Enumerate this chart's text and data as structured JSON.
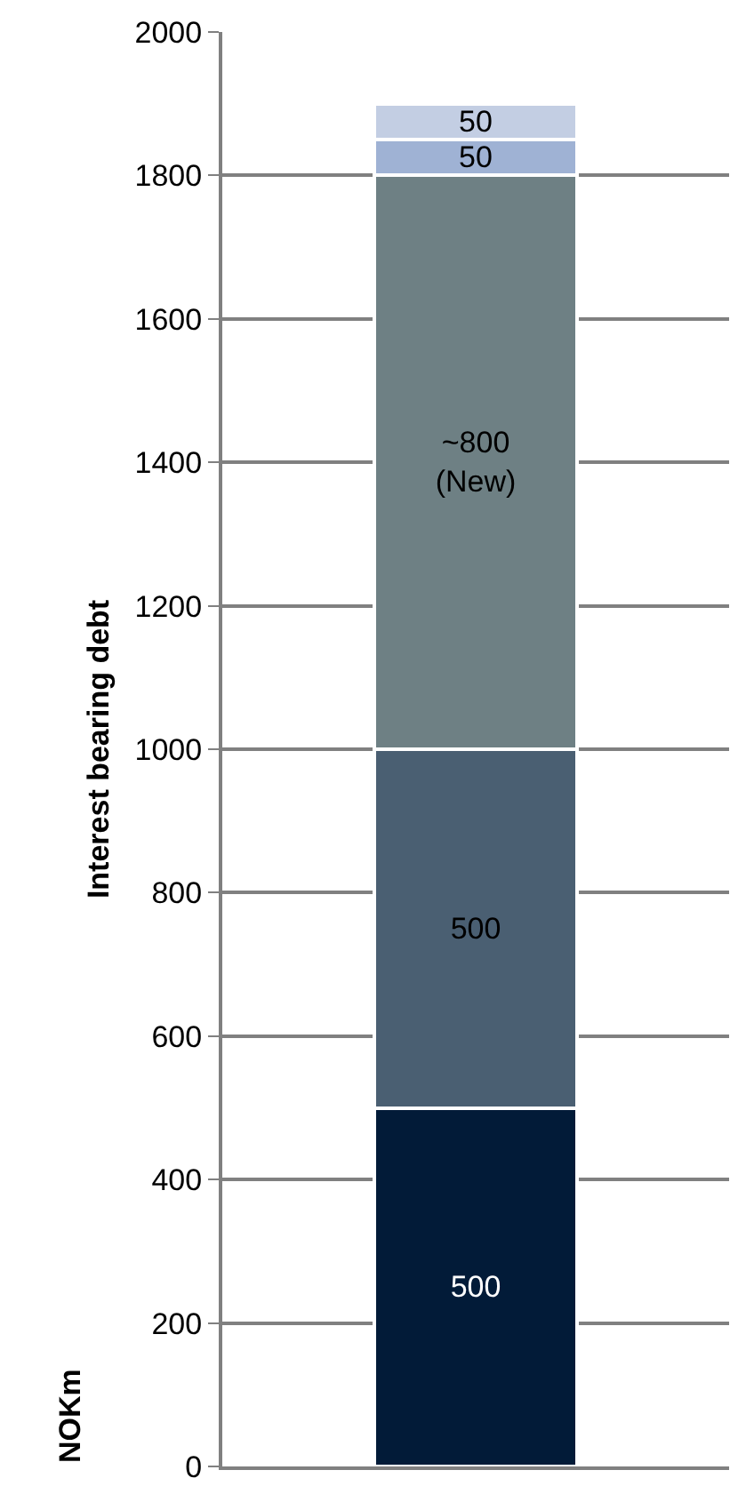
{
  "chart_data": {
    "type": "bar",
    "stacked": true,
    "categories": [
      null
    ],
    "ylabel": "Interest bearing debt",
    "annotations": [
      "NOKm"
    ],
    "series": [
      {
        "color": "#021b38",
        "values": [
          500
        ],
        "value_labels": [
          "500"
        ]
      },
      {
        "color": "#4a5f72",
        "values": [
          500
        ],
        "value_labels": [
          "500"
        ]
      },
      {
        "color": "#6e8084",
        "values": [
          800
        ],
        "value_labels": [
          "~800\n(New)"
        ]
      },
      {
        "color": "#9fb2d4",
        "values": [
          50
        ],
        "value_labels": [
          "50"
        ]
      },
      {
        "color": "#c3cee3",
        "values": [
          50
        ],
        "value_labels": [
          "50"
        ]
      }
    ],
    "ylim": [
      0,
      2000
    ],
    "yticks": [
      0,
      200,
      400,
      600,
      800,
      1000,
      1200,
      1400,
      1600,
      1800,
      2000
    ],
    "grid": "y"
  }
}
